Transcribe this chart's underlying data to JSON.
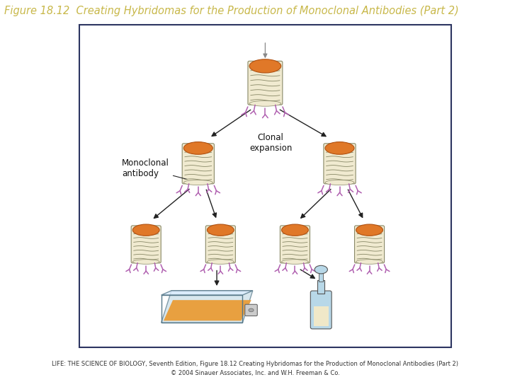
{
  "title": "Figure 18.12  Creating Hybridomas for the Production of Monoclonal Antibodies (Part 2)",
  "title_bg_color": "#2d3561",
  "title_text_color": "#c8b84a",
  "title_fontsize": 10.5,
  "footer_line1": "LIFE: THE SCIENCE OF BIOLOGY, Seventh Edition, Figure 18.12 Creating Hybridomas for the Production of Monoclonal Antibodies (Part 2)",
  "footer_line2": "© 2004 Sinauer Associates, Inc. and W.H. Freeman & Co.",
  "footer_fontsize": 6.0,
  "bg_color": "#ffffff",
  "border_color": "#2d3561",
  "label_monoclonal": "Monoclonal\nantibody",
  "label_clonal": "Clonal\nexpansion",
  "cell_cap_color": "#e07828",
  "cell_cap_edge": "#b05010",
  "cell_body_color": "#f0ead0",
  "cell_body_edge": "#888866",
  "cell_stripe_color": "#888866",
  "antibody_color": "#b060b0",
  "arrow_color": "#222222",
  "flask_body_color": "#e8a040",
  "flask_glass_color": "#c8dde8",
  "flask_cap_color": "#aaaaaa",
  "bottle_glass_color": "#b8d8e8",
  "bottle_liquid_color": "#f0e8c8",
  "bottle_outline": "#555555"
}
